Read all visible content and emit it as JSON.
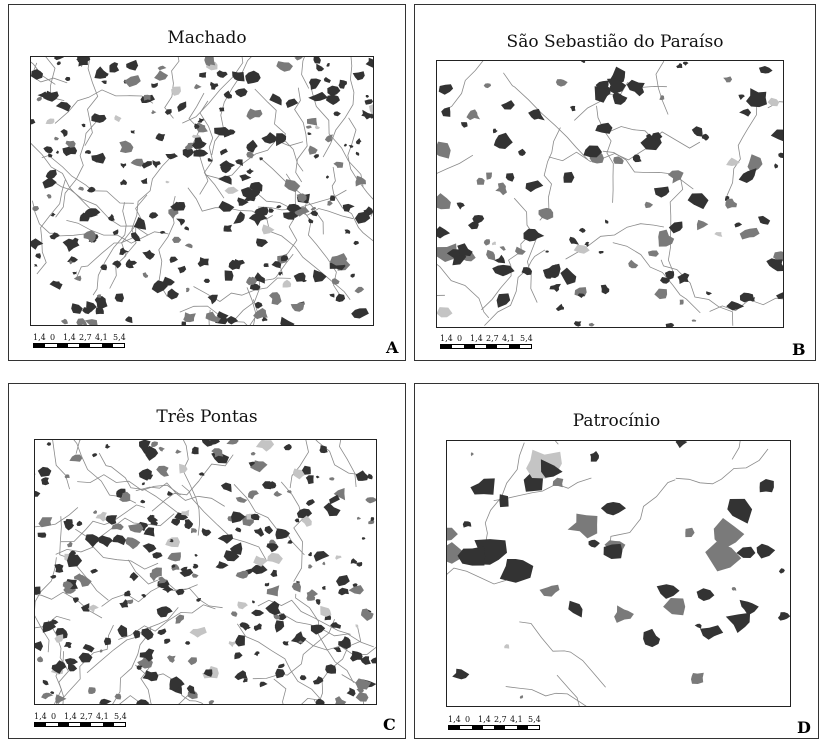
{
  "panels": [
    {
      "title": "Machado",
      "letter": "A"
    },
    {
      "title": "São Sebastião do Paraíso",
      "letter": "B"
    },
    {
      "title": "Três Pontas",
      "letter": "C"
    },
    {
      "title": "Patrocínio",
      "letter": "D"
    }
  ],
  "scale": {
    "ticks": [
      "1,4",
      "0",
      "1,4",
      "2,7",
      "4,1",
      "5,4"
    ]
  },
  "legend_colors": {
    "coffee_dark": "#333333",
    "coffee_mid": "#7a7a7a",
    "urban": "#c4c4c4",
    "drainage": "#8a8a8a"
  }
}
